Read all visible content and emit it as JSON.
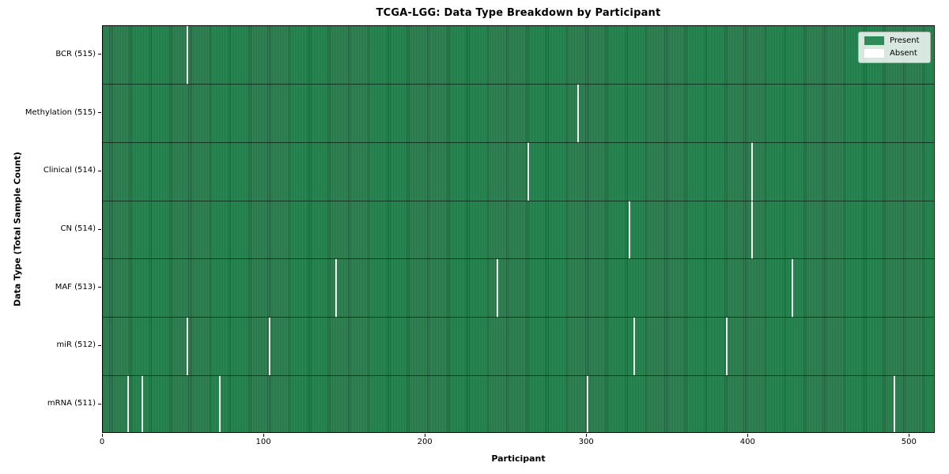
{
  "title": "TCGA-LGG: Data Type Breakdown by Participant",
  "xlabel": "Participant",
  "ylabel": "Data Type (Total Sample Count)",
  "legend": {
    "present": "Present",
    "absent": "Absent"
  },
  "colors": {
    "present_fill": "#2e8b57",
    "present_edge": "#1b5e3a",
    "absent_swatch": "#ffffff",
    "absent_gap": "#efefef"
  },
  "chart_data": {
    "type": "heatmap",
    "title": "TCGA-LGG: Data Type Breakdown by Participant",
    "xlabel": "Participant",
    "ylabel": "Data Type (Total Sample Count)",
    "legend_entries": [
      {
        "label": "Present",
        "color": "#2e8b57"
      },
      {
        "label": "Absent",
        "color": "#ffffff"
      }
    ],
    "legend_position": "upper right",
    "grid": false,
    "n_participants": 516,
    "x_range": [
      0,
      516
    ],
    "x_ticks": [
      0,
      100,
      200,
      300,
      400,
      500
    ],
    "rows": [
      {
        "label": "BCR (515)",
        "data_type": "BCR",
        "total_samples": 515,
        "absent_participants": [
          52
        ]
      },
      {
        "label": "Methylation (515)",
        "data_type": "Methylation",
        "total_samples": 515,
        "absent_participants": [
          294
        ]
      },
      {
        "label": "Clinical (514)",
        "data_type": "Clinical",
        "total_samples": 514,
        "absent_participants": [
          263,
          402
        ]
      },
      {
        "label": "CN (514)",
        "data_type": "CN",
        "total_samples": 514,
        "absent_participants": [
          326,
          402
        ]
      },
      {
        "label": "MAF (513)",
        "data_type": "MAF",
        "total_samples": 513,
        "absent_participants": [
          144,
          244,
          427
        ]
      },
      {
        "label": "miR (512)",
        "data_type": "miR",
        "total_samples": 512,
        "absent_participants": [
          52,
          103,
          329,
          386
        ]
      },
      {
        "label": "mRNA (511)",
        "data_type": "mRNA",
        "total_samples": 511,
        "absent_participants": [
          15,
          24,
          72,
          300,
          490
        ]
      }
    ]
  }
}
